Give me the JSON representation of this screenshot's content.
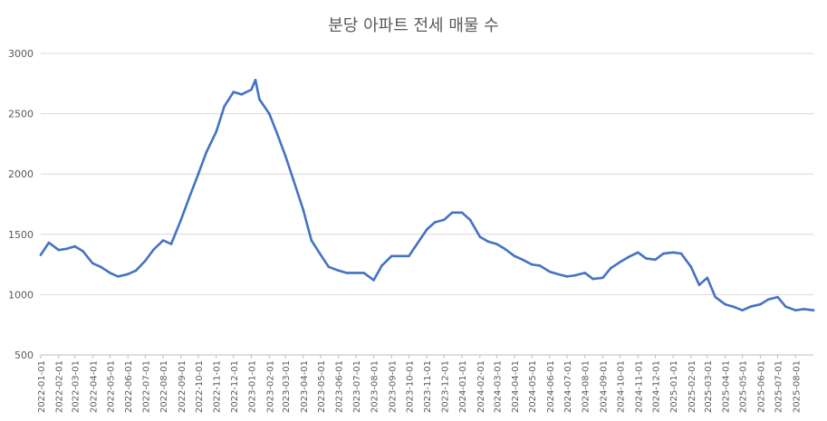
{
  "chart_data": {
    "type": "line",
    "title": "분당 아파트 전세 매물 수",
    "xlabel": "",
    "ylabel": "",
    "ylim": [
      500,
      3000
    ],
    "yticks": [
      500,
      1000,
      1500,
      2000,
      2500,
      3000
    ],
    "grid": true,
    "legend": "none",
    "line_color": "#4472C4",
    "x_ticks": [
      "2022-01-01",
      "2022-02-01",
      "2022-03-01",
      "2022-04-01",
      "2022-05-01",
      "2022-06-01",
      "2022-07-01",
      "2022-08-01",
      "2022-09-01",
      "2022-10-01",
      "2022-11-01",
      "2022-12-01",
      "2023-01-01",
      "2023-02-01",
      "2023-03-01",
      "2023-04-01",
      "2023-05-01",
      "2023-06-01",
      "2023-07-01",
      "2023-08-01",
      "2023-09-01",
      "2023-10-01",
      "2023-11-01",
      "2023-12-01",
      "2024-01-01",
      "2024-02-01",
      "2024-03-01",
      "2024-04-01",
      "2024-05-01",
      "2024-06-01",
      "2024-07-01",
      "2024-08-01",
      "2024-09-01",
      "2024-10-01",
      "2024-11-01",
      "2024-12-01",
      "2025-01-01",
      "2025-02-01",
      "2025-03-01",
      "2025-04-01",
      "2025-05-01",
      "2025-06-01",
      "2025-07-01",
      "2025-08-01"
    ],
    "x": [
      "2022-01-01",
      "2022-01-15",
      "2022-02-01",
      "2022-02-15",
      "2022-03-01",
      "2022-03-15",
      "2022-04-01",
      "2022-04-15",
      "2022-05-01",
      "2022-05-15",
      "2022-06-01",
      "2022-06-15",
      "2022-07-01",
      "2022-07-15",
      "2022-08-01",
      "2022-08-15",
      "2022-09-01",
      "2022-09-15",
      "2022-10-01",
      "2022-10-15",
      "2022-11-01",
      "2022-11-15",
      "2022-12-01",
      "2022-12-15",
      "2023-01-01",
      "2023-01-08",
      "2023-01-15",
      "2023-02-01",
      "2023-02-15",
      "2023-03-01",
      "2023-03-15",
      "2023-04-01",
      "2023-04-15",
      "2023-05-01",
      "2023-05-15",
      "2023-06-01",
      "2023-06-15",
      "2023-07-01",
      "2023-07-15",
      "2023-08-01",
      "2023-08-15",
      "2023-09-01",
      "2023-09-15",
      "2023-10-01",
      "2023-10-15",
      "2023-11-01",
      "2023-11-15",
      "2023-12-01",
      "2023-12-15",
      "2024-01-01",
      "2024-01-15",
      "2024-02-01",
      "2024-02-15",
      "2024-03-01",
      "2024-03-15",
      "2024-04-01",
      "2024-04-15",
      "2024-05-01",
      "2024-05-15",
      "2024-06-01",
      "2024-06-15",
      "2024-07-01",
      "2024-07-15",
      "2024-08-01",
      "2024-08-15",
      "2024-09-01",
      "2024-09-15",
      "2024-10-01",
      "2024-10-15",
      "2024-11-01",
      "2024-11-15",
      "2024-12-01",
      "2024-12-15",
      "2025-01-01",
      "2025-01-15",
      "2025-02-01",
      "2025-02-15",
      "2025-03-01",
      "2025-03-15",
      "2025-04-01",
      "2025-04-15",
      "2025-05-01",
      "2025-05-15",
      "2025-06-01",
      "2025-06-15",
      "2025-07-01",
      "2025-07-15",
      "2025-08-01",
      "2025-08-15",
      "2025-09-01"
    ],
    "series": [
      {
        "values": [
          1330,
          1430,
          1370,
          1380,
          1400,
          1360,
          1260,
          1230,
          1180,
          1150,
          1170,
          1200,
          1280,
          1370,
          1450,
          1420,
          1620,
          1800,
          2000,
          2180,
          2350,
          2560,
          2680,
          2660,
          2700,
          2780,
          2620,
          2500,
          2330,
          2150,
          1950,
          1700,
          1450,
          1330,
          1230,
          1200,
          1180,
          1180,
          1180,
          1120,
          1240,
          1320,
          1320,
          1320,
          1420,
          1540,
          1600,
          1620,
          1680,
          1680,
          1620,
          1480,
          1440,
          1420,
          1380,
          1320,
          1290,
          1250,
          1240,
          1190,
          1170,
          1150,
          1160,
          1180,
          1130,
          1140,
          1220,
          1270,
          1310,
          1350,
          1300,
          1290,
          1340,
          1350,
          1340,
          1230,
          1080,
          1140,
          980,
          920,
          900,
          870,
          900,
          920,
          960,
          980,
          900,
          870,
          880,
          870
        ]
      }
    ]
  }
}
